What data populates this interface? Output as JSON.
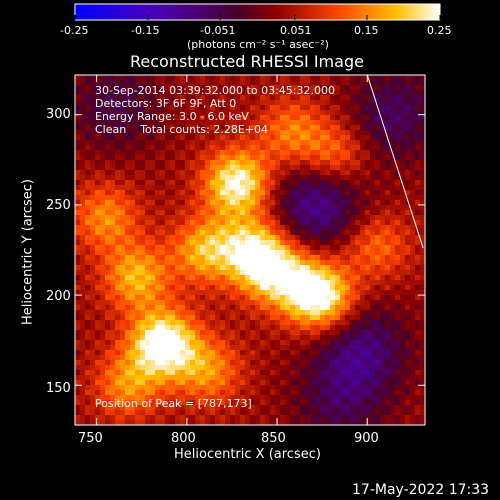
{
  "colorbar": {
    "ticks": [
      "-0.25",
      "-0.15",
      "-0.051",
      "0.051",
      "0.15",
      "0.25"
    ],
    "tick_values": [
      -0.25,
      -0.15,
      -0.051,
      0.051,
      0.15,
      0.25
    ],
    "range": [
      -0.25,
      0.25
    ],
    "units_text": "(photons cm⁻² s⁻¹ asec⁻²)"
  },
  "chart_data": {
    "type": "heatmap",
    "title": "Reconstructed RHESSI Image",
    "xlabel": "Heliocentric X (arcsec)",
    "ylabel": "Heliocentric Y (arcsec)",
    "xlim": [
      738,
      932
    ],
    "ylim": [
      128,
      322
    ],
    "xticks": [
      750,
      800,
      850,
      900
    ],
    "yticks": [
      150,
      200,
      250,
      300
    ],
    "annotations": {
      "time_range": "30-Sep-2014 03:39:32.000 to 03:45:32.000",
      "detectors": "Detectors: 3F 6F 9F, Att 0",
      "energy": "Energy Range: 3.0 - 6.0 keV",
      "clean": "Clean    Total counts: 2.28E+04",
      "peak": "Position of Peak = [787,173]"
    },
    "peak": [
      787,
      173
    ],
    "sources": [
      {
        "x": 787,
        "y": 173,
        "level": 0.25
      },
      {
        "x": 828,
        "y": 262,
        "level": 0.22
      },
      {
        "x": 837,
        "y": 225,
        "level": 0.17
      },
      {
        "x": 848,
        "y": 213,
        "level": 0.16
      },
      {
        "x": 868,
        "y": 203,
        "level": 0.15
      },
      {
        "x": 877,
        "y": 197,
        "level": 0.14
      },
      {
        "x": 810,
        "y": 225,
        "level": 0.15
      },
      {
        "x": 772,
        "y": 210,
        "level": 0.15
      },
      {
        "x": 755,
        "y": 243,
        "level": 0.12
      },
      {
        "x": 812,
        "y": 158,
        "level": 0.12
      },
      {
        "x": 767,
        "y": 150,
        "level": 0.12
      },
      {
        "x": 858,
        "y": 290,
        "level": 0.11
      },
      {
        "x": 882,
        "y": 278,
        "level": 0.11
      },
      {
        "x": 905,
        "y": 227,
        "level": 0.1
      },
      {
        "x": 897,
        "y": 170,
        "level": -0.12
      },
      {
        "x": 872,
        "y": 250,
        "level": -0.14
      },
      {
        "x": 915,
        "y": 300,
        "level": -0.1
      },
      {
        "x": 760,
        "y": 305,
        "level": -0.08
      },
      {
        "x": 885,
        "y": 140,
        "level": -0.08
      }
    ],
    "limb_line": [
      [
        900,
        322
      ],
      [
        931,
        226
      ]
    ]
  },
  "footer": {
    "timestamp": "17-May-2022 17:33"
  }
}
